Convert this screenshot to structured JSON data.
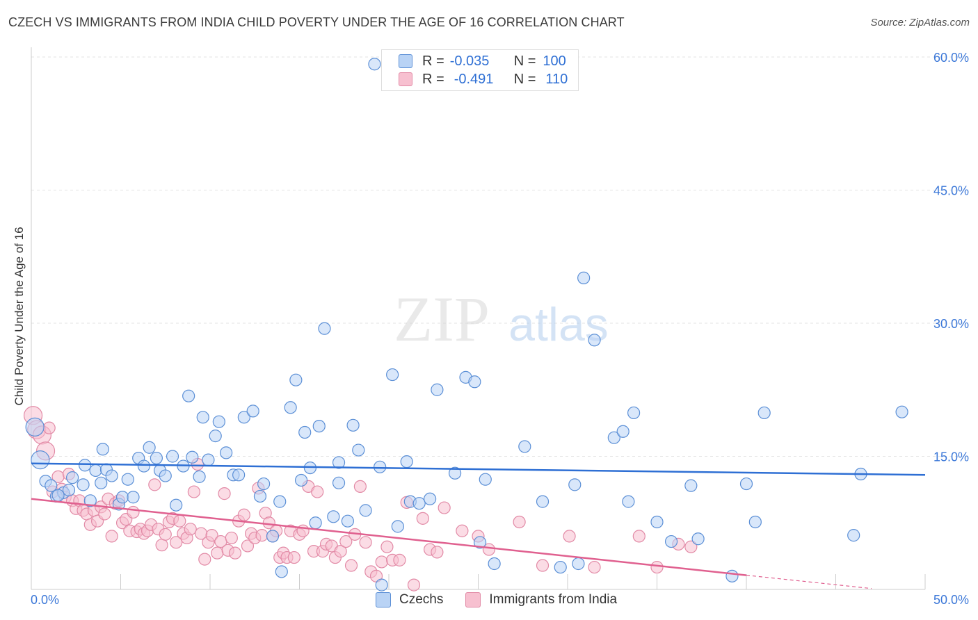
{
  "title": "CZECH VS IMMIGRANTS FROM INDIA CHILD POVERTY UNDER THE AGE OF 16 CORRELATION CHART",
  "source": "Source: ZipAtlas.com",
  "watermark": {
    "zip": "ZIP",
    "atlas": "atlas"
  },
  "legend": {
    "czech": {
      "r_label": "R =",
      "r_value": "-0.035",
      "n_label": "N =",
      "n_value": "100"
    },
    "india": {
      "r_label": "R =",
      "r_value": "-0.491",
      "n_label": "N =",
      "n_value": "110"
    }
  },
  "bottom_legend": {
    "czech": "Czechs",
    "india": "Immigrants from India"
  },
  "colors": {
    "czech_fill": "#b9d3f5",
    "czech_stroke": "#5b8fd6",
    "czech_line": "#2e6fd4",
    "india_fill": "#f7c0d0",
    "india_stroke": "#e28aa6",
    "india_line": "#e0608f",
    "tick_label": "#3c78d8",
    "grid": "#e3e3e3"
  },
  "chart_data": {
    "type": "scatter",
    "title": "CZECH VS IMMIGRANTS FROM INDIA CHILD POVERTY UNDER THE AGE OF 16 CORRELATION CHART",
    "xlabel": "",
    "ylabel": "Child Poverty Under the Age of 16",
    "xlim": [
      0,
      50
    ],
    "ylim": [
      0,
      60
    ],
    "x_tick_labels": [
      "0.0%",
      "50.0%"
    ],
    "y_ticks": [
      15,
      30,
      45,
      60
    ],
    "y_tick_labels": [
      "15.0%",
      "30.0%",
      "45.0%",
      "60.0%"
    ],
    "grid": "horizontal dashed",
    "series": [
      {
        "name": "Czechs",
        "trend": {
          "x": [
            0,
            50
          ],
          "y": [
            14.2,
            12.9
          ]
        },
        "points": [
          [
            0.2,
            18.3
          ],
          [
            0.5,
            14.6
          ],
          [
            0.8,
            12.2
          ],
          [
            1.1,
            11.7
          ],
          [
            1.4,
            10.5
          ],
          [
            1.8,
            10.9
          ],
          [
            2.3,
            12.6
          ],
          [
            2.9,
            11.8
          ],
          [
            3.3,
            10.0
          ],
          [
            3.6,
            13.4
          ],
          [
            3.9,
            12.0
          ],
          [
            4.0,
            15.8
          ],
          [
            4.2,
            13.5
          ],
          [
            4.5,
            12.8
          ],
          [
            4.9,
            9.6
          ],
          [
            5.1,
            10.4
          ],
          [
            5.4,
            12.4
          ],
          [
            5.7,
            10.4
          ],
          [
            6.0,
            14.8
          ],
          [
            6.3,
            13.9
          ],
          [
            6.6,
            16.0
          ],
          [
            7.0,
            14.8
          ],
          [
            7.2,
            13.4
          ],
          [
            7.5,
            12.8
          ],
          [
            7.9,
            15.0
          ],
          [
            8.1,
            9.5
          ],
          [
            8.5,
            13.9
          ],
          [
            8.8,
            21.8
          ],
          [
            9.0,
            14.9
          ],
          [
            9.4,
            12.7
          ],
          [
            9.6,
            19.4
          ],
          [
            9.9,
            14.6
          ],
          [
            10.3,
            17.3
          ],
          [
            10.5,
            18.9
          ],
          [
            10.9,
            15.4
          ],
          [
            11.3,
            12.9
          ],
          [
            11.6,
            12.9
          ],
          [
            11.9,
            19.4
          ],
          [
            12.4,
            20.1
          ],
          [
            12.8,
            10.5
          ],
          [
            13.0,
            11.9
          ],
          [
            13.5,
            6.0
          ],
          [
            13.9,
            9.9
          ],
          [
            14.0,
            2.0
          ],
          [
            14.5,
            20.5
          ],
          [
            14.8,
            23.6
          ],
          [
            15.1,
            12.3
          ],
          [
            15.3,
            17.7
          ],
          [
            15.6,
            13.7
          ],
          [
            15.9,
            7.5
          ],
          [
            16.1,
            18.4
          ],
          [
            16.4,
            29.4
          ],
          [
            16.9,
            8.2
          ],
          [
            17.2,
            14.3
          ],
          [
            17.2,
            12.0
          ],
          [
            17.7,
            7.7
          ],
          [
            18.0,
            18.5
          ],
          [
            18.3,
            15.7
          ],
          [
            18.7,
            8.9
          ],
          [
            19.5,
            13.8
          ],
          [
            19.6,
            0.5
          ],
          [
            19.2,
            59.2
          ],
          [
            20.2,
            24.2
          ],
          [
            20.5,
            7.1
          ],
          [
            21.0,
            14.4
          ],
          [
            21.2,
            9.9
          ],
          [
            21.7,
            9.7
          ],
          [
            22.3,
            10.2
          ],
          [
            22.7,
            22.5
          ],
          [
            23.7,
            13.1
          ],
          [
            24.3,
            23.9
          ],
          [
            24.8,
            23.4
          ],
          [
            25.1,
            5.3
          ],
          [
            25.4,
            12.4
          ],
          [
            25.9,
            2.9
          ],
          [
            27.6,
            16.1
          ],
          [
            28.6,
            9.9
          ],
          [
            29.6,
            2.5
          ],
          [
            30.4,
            11.8
          ],
          [
            30.6,
            2.9
          ],
          [
            30.9,
            35.1
          ],
          [
            31.5,
            28.1
          ],
          [
            32.6,
            17.1
          ],
          [
            33.1,
            17.8
          ],
          [
            33.4,
            9.9
          ],
          [
            33.7,
            19.9
          ],
          [
            35.0,
            7.6
          ],
          [
            35.8,
            5.4
          ],
          [
            36.9,
            11.7
          ],
          [
            37.3,
            5.7
          ],
          [
            39.2,
            1.5
          ],
          [
            40.0,
            11.9
          ],
          [
            40.5,
            7.6
          ],
          [
            41.0,
            19.9
          ],
          [
            46.4,
            13.0
          ],
          [
            46.0,
            6.1
          ],
          [
            48.7,
            20.0
          ],
          [
            1.5,
            10.6
          ],
          [
            2.1,
            11.2
          ],
          [
            3.0,
            14.0
          ]
        ]
      },
      {
        "name": "Immigrants from India",
        "trend": {
          "x": [
            0,
            40
          ],
          "y": [
            10.2,
            1.6
          ]
        },
        "trend_dashed": {
          "x": [
            40,
            47
          ],
          "y": [
            1.6,
            0.1
          ]
        },
        "points": [
          [
            0.1,
            19.6
          ],
          [
            0.3,
            18.0
          ],
          [
            0.6,
            17.4
          ],
          [
            0.8,
            15.6
          ],
          [
            1.0,
            18.2
          ],
          [
            1.2,
            11.0
          ],
          [
            1.5,
            12.7
          ],
          [
            1.7,
            11.3
          ],
          [
            1.9,
            10.4
          ],
          [
            2.1,
            13.0
          ],
          [
            2.3,
            10.0
          ],
          [
            2.5,
            9.1
          ],
          [
            2.7,
            10.0
          ],
          [
            2.9,
            8.9
          ],
          [
            3.1,
            8.5
          ],
          [
            3.3,
            7.3
          ],
          [
            3.5,
            8.9
          ],
          [
            3.7,
            7.7
          ],
          [
            3.9,
            9.3
          ],
          [
            4.1,
            8.5
          ],
          [
            4.3,
            10.2
          ],
          [
            4.5,
            6.0
          ],
          [
            4.7,
            9.7
          ],
          [
            4.9,
            10.0
          ],
          [
            5.1,
            7.5
          ],
          [
            5.3,
            7.9
          ],
          [
            5.5,
            6.6
          ],
          [
            5.7,
            8.7
          ],
          [
            5.9,
            6.5
          ],
          [
            6.1,
            6.8
          ],
          [
            6.3,
            6.3
          ],
          [
            6.5,
            6.6
          ],
          [
            6.7,
            7.3
          ],
          [
            6.9,
            11.8
          ],
          [
            7.1,
            6.8
          ],
          [
            7.3,
            5.0
          ],
          [
            7.5,
            6.2
          ],
          [
            7.7,
            7.6
          ],
          [
            7.9,
            8.0
          ],
          [
            8.1,
            5.3
          ],
          [
            8.3,
            7.7
          ],
          [
            8.5,
            6.3
          ],
          [
            8.7,
            5.8
          ],
          [
            8.9,
            6.8
          ],
          [
            9.1,
            11.0
          ],
          [
            9.3,
            14.1
          ],
          [
            9.5,
            6.3
          ],
          [
            9.7,
            3.4
          ],
          [
            9.9,
            5.3
          ],
          [
            10.1,
            6.1
          ],
          [
            10.4,
            4.1
          ],
          [
            10.6,
            5.4
          ],
          [
            10.8,
            10.8
          ],
          [
            11.0,
            4.4
          ],
          [
            11.2,
            5.8
          ],
          [
            11.4,
            4.1
          ],
          [
            11.6,
            7.7
          ],
          [
            11.9,
            8.4
          ],
          [
            12.1,
            4.9
          ],
          [
            12.3,
            6.3
          ],
          [
            12.5,
            5.8
          ],
          [
            12.7,
            11.4
          ],
          [
            12.9,
            6.1
          ],
          [
            13.1,
            8.6
          ],
          [
            13.3,
            7.5
          ],
          [
            13.5,
            6.0
          ],
          [
            13.7,
            6.6
          ],
          [
            13.9,
            3.6
          ],
          [
            14.1,
            4.1
          ],
          [
            14.3,
            3.6
          ],
          [
            14.5,
            6.6
          ],
          [
            14.7,
            3.6
          ],
          [
            15.0,
            6.2
          ],
          [
            15.2,
            6.6
          ],
          [
            15.5,
            11.6
          ],
          [
            15.8,
            4.3
          ],
          [
            16.0,
            11.0
          ],
          [
            16.3,
            4.3
          ],
          [
            16.5,
            5.1
          ],
          [
            16.8,
            4.9
          ],
          [
            17.0,
            3.6
          ],
          [
            17.3,
            4.3
          ],
          [
            17.6,
            5.4
          ],
          [
            17.9,
            2.7
          ],
          [
            18.1,
            6.2
          ],
          [
            18.4,
            11.6
          ],
          [
            18.7,
            5.3
          ],
          [
            19.0,
            2.0
          ],
          [
            19.3,
            1.5
          ],
          [
            19.6,
            3.1
          ],
          [
            19.9,
            4.8
          ],
          [
            20.2,
            3.3
          ],
          [
            20.6,
            3.3
          ],
          [
            21.0,
            9.8
          ],
          [
            21.4,
            0.5
          ],
          [
            21.9,
            8.0
          ],
          [
            22.3,
            4.5
          ],
          [
            22.7,
            4.2
          ],
          [
            23.1,
            9.2
          ],
          [
            24.1,
            6.6
          ],
          [
            25.0,
            6.0
          ],
          [
            25.6,
            4.5
          ],
          [
            27.3,
            7.6
          ],
          [
            28.6,
            2.7
          ],
          [
            30.1,
            6.0
          ],
          [
            31.5,
            2.5
          ],
          [
            34.0,
            6.0
          ],
          [
            35.0,
            2.5
          ],
          [
            36.2,
            5.1
          ],
          [
            36.9,
            4.8
          ]
        ]
      }
    ]
  }
}
